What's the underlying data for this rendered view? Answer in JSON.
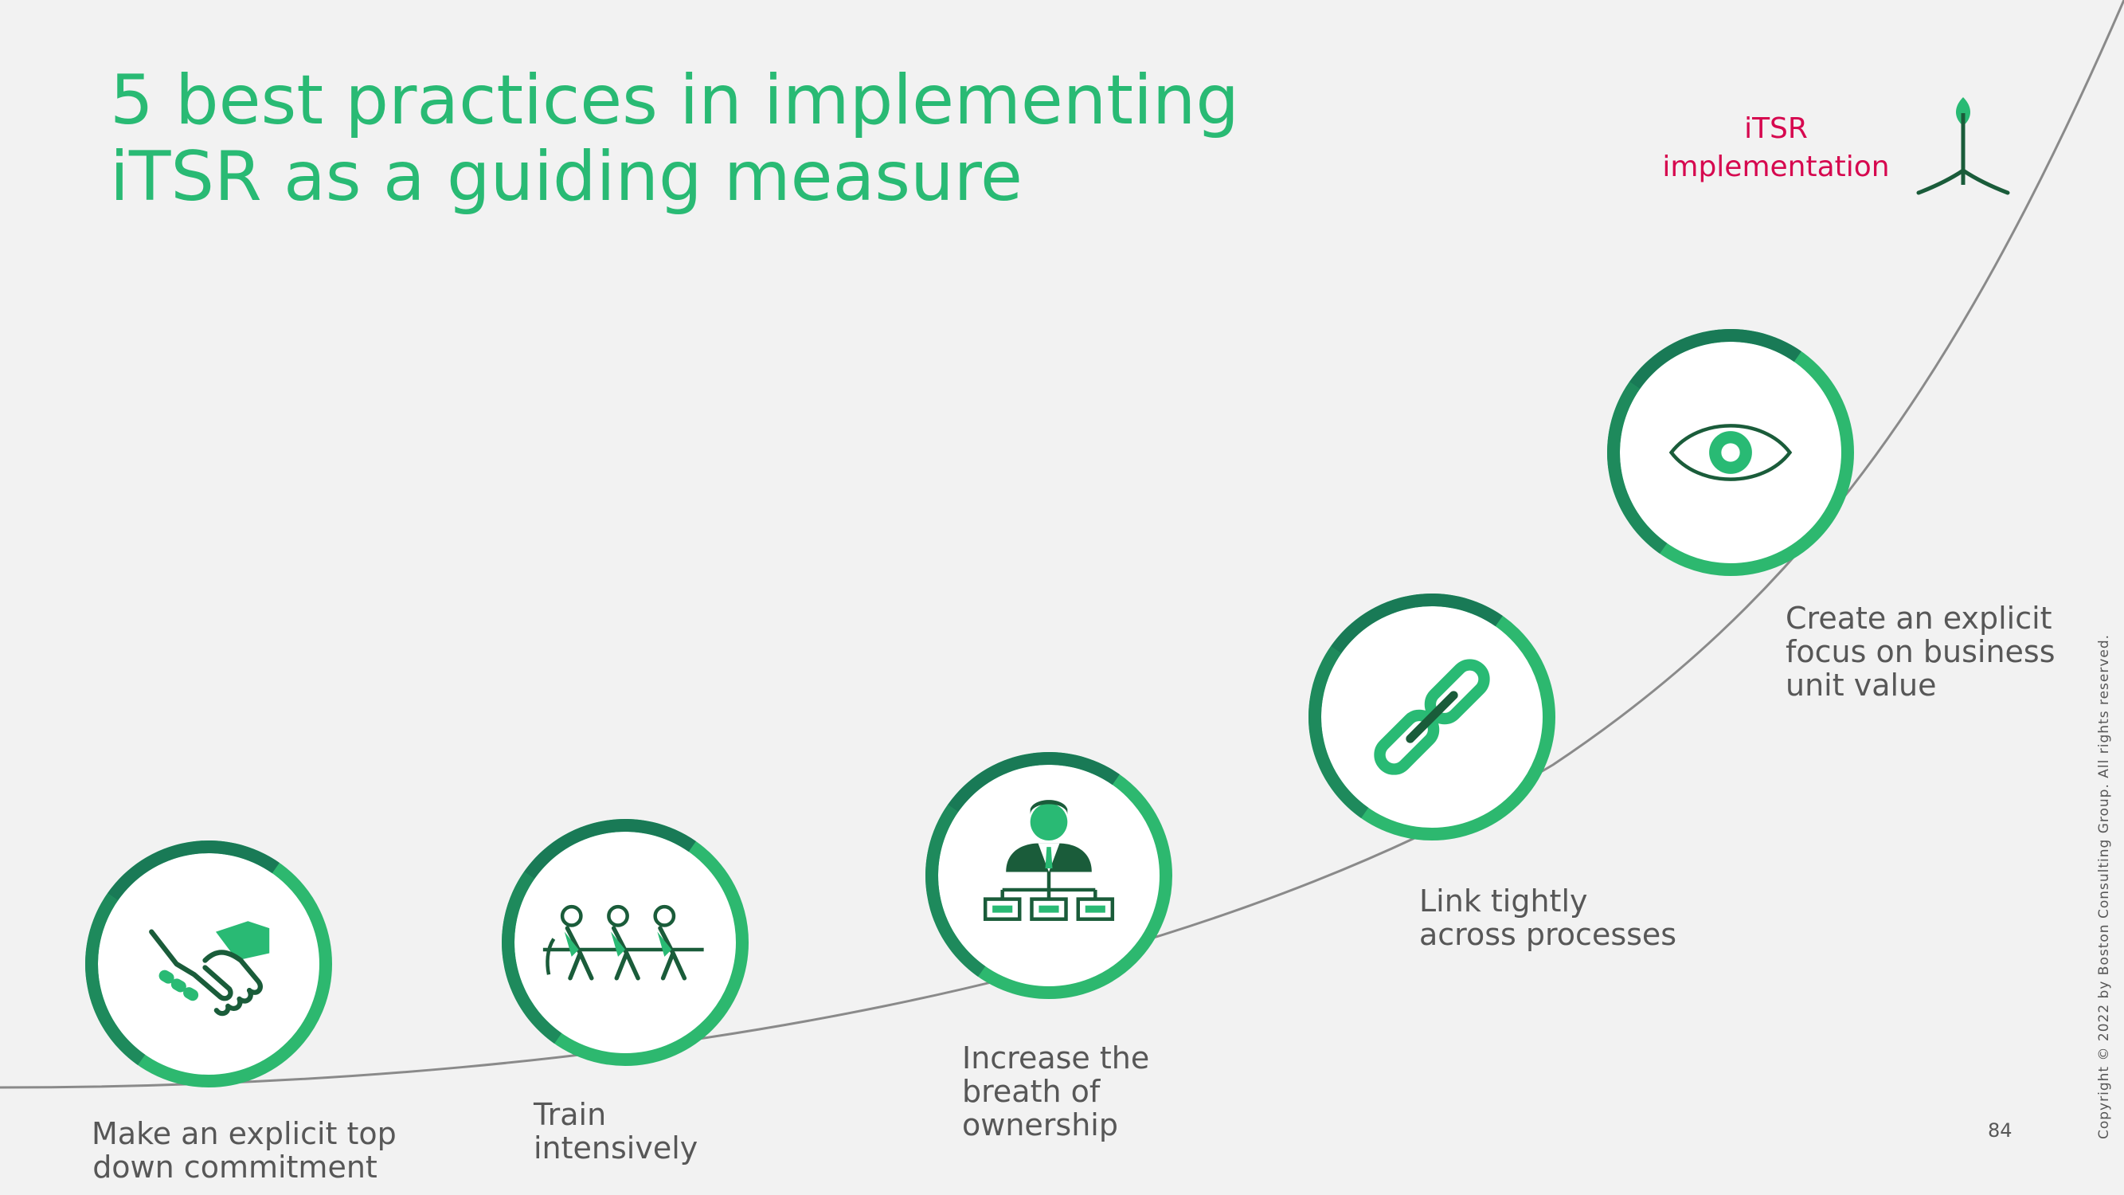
{
  "title": {
    "line1": "5 best practices in implementing",
    "line2": "iTSR as a guiding measure"
  },
  "brand": {
    "line1": "iTSR",
    "line2": "implementation",
    "icon": "sprout-icon"
  },
  "colors": {
    "accent": "#29ba74",
    "dark_green": "#197a56",
    "brand": "#d6084f",
    "text": "#575757"
  },
  "steps": [
    {
      "icon": "handshake-icon",
      "label": [
        "Make an explicit top",
        "down commitment"
      ]
    },
    {
      "icon": "tug-of-war-team-icon",
      "label": [
        "Train",
        "intensively"
      ]
    },
    {
      "icon": "manager-org-chart-icon",
      "label": [
        "Increase the",
        "breath of",
        "ownership"
      ]
    },
    {
      "icon": "chain-link-icon",
      "label": [
        "Link tightly",
        "across processes"
      ]
    },
    {
      "icon": "eye-icon",
      "label": [
        "Create an explicit",
        "focus on business",
        "unit value"
      ]
    }
  ],
  "footer": {
    "page_number": "84",
    "copyright": "Copyright © 2022 by Boston Consulting Group. All rights reserved."
  }
}
